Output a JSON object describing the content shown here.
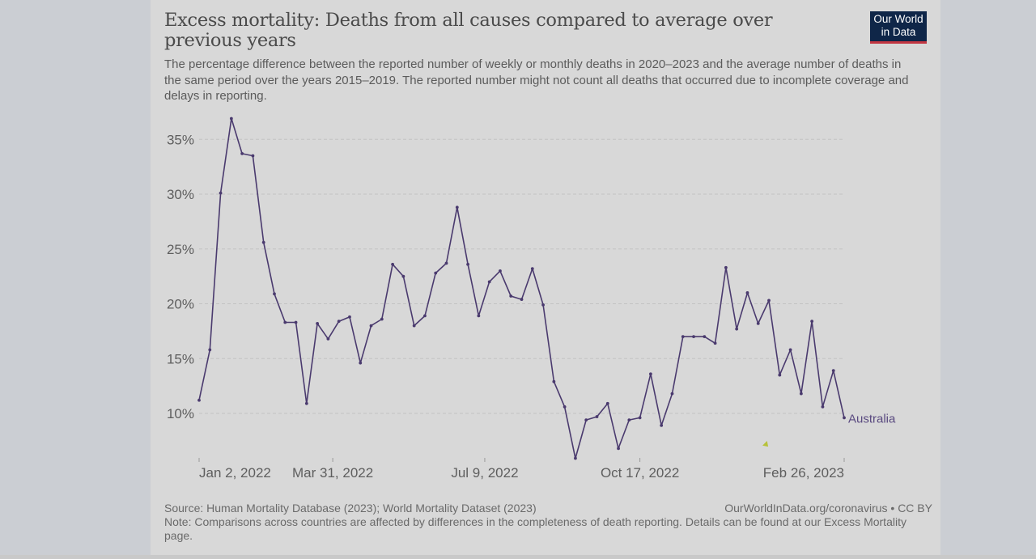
{
  "header": {
    "title": "Excess mortality: Deaths from all causes compared to average over previous years",
    "subtitle": "The percentage difference between the reported number of weekly or monthly deaths in 2020–2023 and the average number of deaths in the same period over the years 2015–2019. The reported number might not count all deaths that occurred due to incomplete coverage and delays in reporting.",
    "logo_line1": "Our World",
    "logo_line2": "in Data"
  },
  "footer": {
    "source": "Source: Human Mortality Database (2023); World Mortality Dataset (2023)",
    "note": "Note: Comparisons across countries are affected by differences in the completeness of death reporting. Details can be found at our Excess Mortality page.",
    "link": "OurWorldInData.org/coronavirus • CC BY"
  },
  "colors": {
    "series": "#4a3a6e",
    "background": "#d8d8d8",
    "logo_bg": "#0f2648",
    "logo_accent": "#c23642"
  },
  "chart_data": {
    "type": "line",
    "title": "Excess mortality: Deaths from all causes compared to average over previous years",
    "xlabel": "",
    "ylabel": "",
    "ylim": [
      5.5,
      37.5
    ],
    "yticks": [
      10,
      15,
      20,
      25,
      30,
      35
    ],
    "ytick_labels": [
      "10%",
      "15%",
      "20%",
      "25%",
      "30%",
      "35%"
    ],
    "x_start": "Jan 2, 2022",
    "x_interval": "weekly",
    "xticks": [
      {
        "index": 0,
        "label": "Jan 2, 2022"
      },
      {
        "index": 12.43,
        "label": "Mar 31, 2022"
      },
      {
        "index": 26.57,
        "label": "Jul 9, 2022"
      },
      {
        "index": 41,
        "label": "Oct 17, 2022"
      },
      {
        "index": 60,
        "label": "Feb 26, 2023"
      }
    ],
    "grid": "horizontal-dashed",
    "legend": "inline-end-label",
    "series": [
      {
        "name": "Australia",
        "values": [
          11.2,
          15.8,
          30.1,
          36.9,
          33.7,
          33.5,
          25.6,
          20.9,
          18.3,
          18.3,
          10.9,
          18.2,
          16.8,
          18.4,
          18.8,
          14.6,
          18.0,
          18.6,
          23.6,
          22.5,
          18.0,
          18.9,
          22.8,
          23.7,
          28.8,
          23.6,
          18.9,
          22.0,
          23.0,
          20.7,
          20.4,
          23.2,
          19.9,
          12.9,
          10.6,
          5.9,
          9.4,
          9.7,
          10.9,
          6.8,
          9.4,
          9.6,
          13.6,
          8.9,
          11.8,
          17.0,
          17.0,
          17.0,
          16.4,
          23.3,
          17.7,
          21.0,
          18.2,
          20.3,
          13.5,
          15.8,
          11.8,
          18.4,
          10.6,
          13.9,
          9.6
        ]
      }
    ]
  }
}
